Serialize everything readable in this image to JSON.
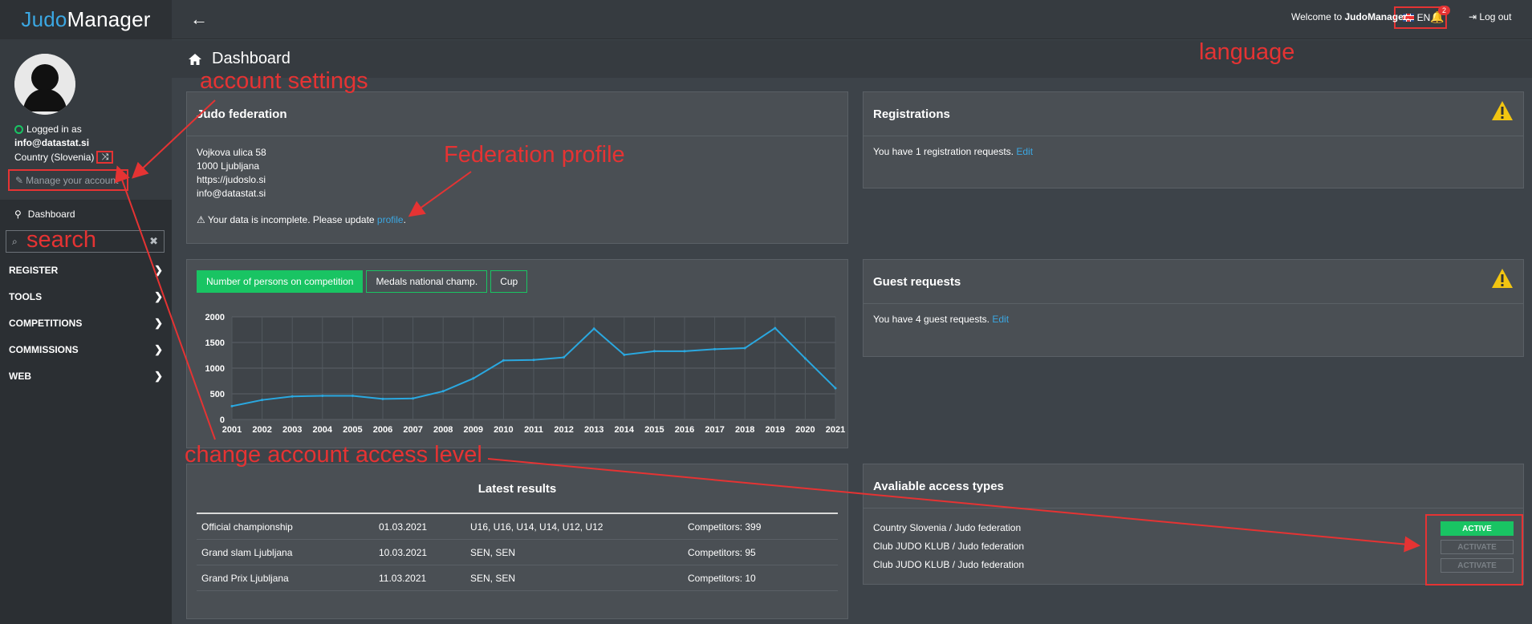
{
  "brand": {
    "part1": "Judo",
    "part2": "Manager"
  },
  "sidebar": {
    "logged_in_label": "Logged in as",
    "email": "info@datastat.si",
    "country": "Country (Slovenia)",
    "manage_label": "Manage your account",
    "dashboard_label": "Dashboard",
    "search_placeholder": "",
    "menu": [
      {
        "label": "REGISTER"
      },
      {
        "label": "TOOLS"
      },
      {
        "label": "COMPETITIONS"
      },
      {
        "label": "COMMISSIONS"
      },
      {
        "label": "WEB"
      }
    ]
  },
  "topbar": {
    "lang": "EN",
    "welcome_prefix": "Welcome to ",
    "welcome_brand": "JudoManager.",
    "notifications": "2",
    "logout": "Log out"
  },
  "page": {
    "title": "Dashboard"
  },
  "federation": {
    "title": "Judo federation",
    "address_lines": [
      "Vojkova ulica 58",
      "1000 Ljubljana",
      "https://judoslo.si",
      "info@datastat.si"
    ],
    "incomplete_prefix": "Your data is incomplete. Please update ",
    "incomplete_link": "profile",
    "incomplete_suffix": "."
  },
  "registrations": {
    "title": "Registrations",
    "text": "You have 1 registration requests.",
    "link": "Edit"
  },
  "guests": {
    "title": "Guest requests",
    "text": "You have 4 guest requests.",
    "link": "Edit"
  },
  "chart_tabs": [
    "Number of persons on competition",
    "Medals national champ.",
    "Cup"
  ],
  "chart_data": {
    "type": "line",
    "x": [
      "2001",
      "2002",
      "2003",
      "2004",
      "2005",
      "2006",
      "2007",
      "2008",
      "2009",
      "2010",
      "2011",
      "2012",
      "2013",
      "2014",
      "2015",
      "2016",
      "2017",
      "2018",
      "2019",
      "2020",
      "2021"
    ],
    "series": [
      {
        "values": [
          260,
          380,
          450,
          460,
          460,
          400,
          410,
          550,
          800,
          1150,
          1160,
          1210,
          1770,
          1260,
          1330,
          1330,
          1370,
          1390,
          1780,
          1190,
          610
        ]
      }
    ],
    "yticks": [
      0,
      500,
      1000,
      1500,
      2000
    ],
    "ylim": [
      0,
      2000
    ],
    "color": "#2aa8e0",
    "grid": true
  },
  "results": {
    "title": "Latest results",
    "rows": [
      {
        "name": "Official championship",
        "date": "01.03.2021",
        "cats": "U16, U16, U14, U14, U12, U12",
        "comp": "Competitors: 399"
      },
      {
        "name": "Grand slam Ljubljana",
        "date": "10.03.2021",
        "cats": "SEN, SEN",
        "comp": "Competitors: 95"
      },
      {
        "name": "Grand Prix Ljubljana",
        "date": "11.03.2021",
        "cats": "SEN, SEN",
        "comp": "Competitors: 10"
      }
    ]
  },
  "access": {
    "title": "Avaliable access types",
    "rows": [
      "Country Slovenia / Judo federation",
      "Club JUDO KLUB / Judo federation",
      "Club JUDO KLUB / Judo federation"
    ],
    "buttons": [
      "ACTIVE",
      "ACTIVATE",
      "ACTIVATE"
    ]
  },
  "annotations": {
    "account_settings": "account settings",
    "federation_profile": "Federation profile",
    "language": "language",
    "search": "search",
    "change_access": "change account access level"
  },
  "colors": {
    "accent": "#19c463",
    "link": "#3ba7e2",
    "annotation": "#e53333"
  }
}
